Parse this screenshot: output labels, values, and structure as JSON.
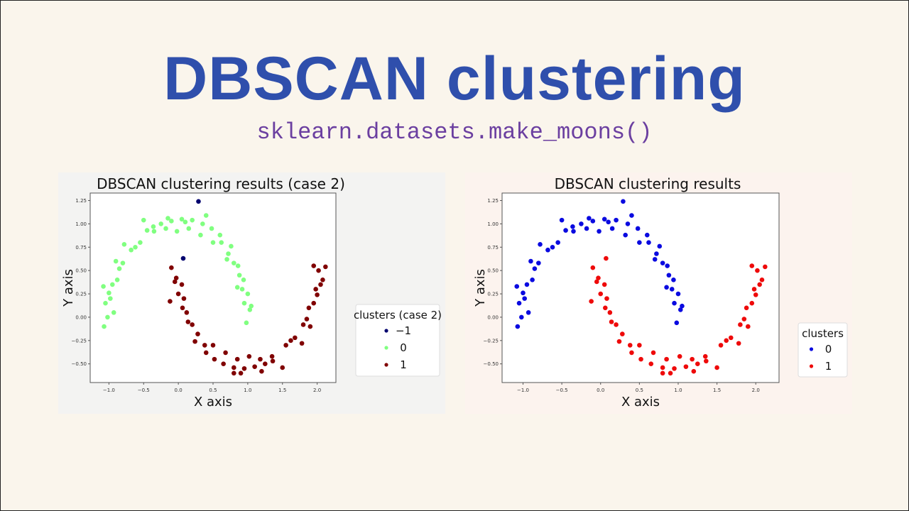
{
  "slide": {
    "title": "DBSCAN clustering",
    "subtitle": "sklearn.datasets.make_moons()"
  },
  "chart_data": [
    {
      "type": "scatter",
      "title": "DBSCAN clustering results (case 2)",
      "xlabel": "X axis",
      "ylabel": "Y axis",
      "xlim": [
        -1.27,
        2.27
      ],
      "ylim": [
        -0.7,
        1.33
      ],
      "xticks": [
        {
          "v": -1.0,
          "label": "−1.0"
        },
        {
          "v": -0.5,
          "label": "−0.5"
        },
        {
          "v": 0.0,
          "label": "0.0"
        },
        {
          "v": 0.5,
          "label": "0.5"
        },
        {
          "v": 1.0,
          "label": "1.0"
        },
        {
          "v": 1.5,
          "label": "1.5"
        },
        {
          "v": 2.0,
          "label": "2.0"
        }
      ],
      "yticks": [
        {
          "v": -0.5,
          "label": "−0.50"
        },
        {
          "v": -0.25,
          "label": "−0.25"
        },
        {
          "v": 0.0,
          "label": "0.00"
        },
        {
          "v": 0.25,
          "label": "0.25"
        },
        {
          "v": 0.5,
          "label": "0.50"
        },
        {
          "v": 0.75,
          "label": "0.75"
        },
        {
          "v": 1.0,
          "label": "1.00"
        },
        {
          "v": 1.25,
          "label": "1.25"
        }
      ],
      "grid": false,
      "legend": {
        "title": "clusters (case 2)",
        "placement": "outside-right"
      },
      "series": [
        {
          "name": "−1",
          "color": "#00006e",
          "points": [
            [
              0.29,
              1.24
            ],
            [
              0.07,
              0.63
            ]
          ]
        },
        {
          "name": "0",
          "color": "#80ff80",
          "points": [
            [
              1.03,
              0.08
            ],
            [
              0.95,
              0.15
            ],
            [
              1.05,
              0.12
            ],
            [
              0.92,
              0.3
            ],
            [
              1.0,
              0.25
            ],
            [
              0.88,
              0.45
            ],
            [
              0.94,
              0.4
            ],
            [
              0.8,
              0.58
            ],
            [
              0.86,
              0.55
            ],
            [
              0.72,
              0.68
            ],
            [
              0.76,
              0.76
            ],
            [
              0.62,
              0.8
            ],
            [
              0.6,
              0.88
            ],
            [
              0.5,
              0.8
            ],
            [
              0.48,
              0.95
            ],
            [
              0.35,
              1.0
            ],
            [
              0.32,
              0.88
            ],
            [
              0.2,
              1.04
            ],
            [
              0.15,
              0.95
            ],
            [
              0.05,
              1.05
            ],
            [
              -0.02,
              0.92
            ],
            [
              -0.1,
              1.03
            ],
            [
              -0.18,
              0.95
            ],
            [
              -0.25,
              1.0
            ],
            [
              -0.35,
              0.92
            ],
            [
              -0.36,
              0.97
            ],
            [
              -0.5,
              1.04
            ],
            [
              -0.55,
              0.8
            ],
            [
              -0.62,
              0.75
            ],
            [
              -0.68,
              0.72
            ],
            [
              -0.78,
              0.78
            ],
            [
              -0.8,
              0.58
            ],
            [
              -0.85,
              0.52
            ],
            [
              -0.9,
              0.6
            ],
            [
              -0.88,
              0.4
            ],
            [
              -0.95,
              0.35
            ],
            [
              -1.0,
              0.26
            ],
            [
              -0.98,
              0.2
            ],
            [
              -1.05,
              0.15
            ],
            [
              -1.02,
              0.0
            ],
            [
              -1.07,
              -0.1
            ],
            [
              -0.93,
              0.05
            ],
            [
              -1.08,
              0.33
            ],
            [
              0.4,
              1.09
            ],
            [
              0.98,
              -0.06
            ],
            [
              -0.15,
              1.06
            ],
            [
              0.1,
              1.02
            ],
            [
              -0.45,
              0.93
            ],
            [
              0.7,
              0.62
            ],
            [
              0.85,
              0.32
            ]
          ]
        },
        {
          "name": "1",
          "color": "#800000",
          "points": [
            [
              -0.03,
              0.42
            ],
            [
              0.05,
              0.35
            ],
            [
              -0.05,
              0.38
            ],
            [
              0.08,
              0.2
            ],
            [
              0.0,
              0.25
            ],
            [
              0.12,
              0.05
            ],
            [
              0.06,
              0.1
            ],
            [
              0.2,
              -0.08
            ],
            [
              0.14,
              -0.05
            ],
            [
              0.28,
              -0.18
            ],
            [
              0.24,
              -0.26
            ],
            [
              0.38,
              -0.3
            ],
            [
              0.4,
              -0.38
            ],
            [
              0.5,
              -0.3
            ],
            [
              0.52,
              -0.45
            ],
            [
              0.65,
              -0.5
            ],
            [
              0.68,
              -0.38
            ],
            [
              0.8,
              -0.54
            ],
            [
              0.85,
              -0.45
            ],
            [
              0.95,
              -0.55
            ],
            [
              1.02,
              -0.42
            ],
            [
              1.1,
              -0.53
            ],
            [
              1.18,
              -0.45
            ],
            [
              1.25,
              -0.5
            ],
            [
              1.35,
              -0.42
            ],
            [
              1.36,
              -0.47
            ],
            [
              1.5,
              -0.54
            ],
            [
              1.55,
              -0.3
            ],
            [
              1.62,
              -0.25
            ],
            [
              1.68,
              -0.22
            ],
            [
              1.78,
              -0.28
            ],
            [
              1.8,
              -0.08
            ],
            [
              1.85,
              -0.02
            ],
            [
              1.9,
              -0.1
            ],
            [
              1.88,
              0.1
            ],
            [
              1.95,
              0.15
            ],
            [
              2.0,
              0.24
            ],
            [
              1.98,
              0.3
            ],
            [
              2.05,
              0.35
            ],
            [
              2.02,
              0.5
            ],
            [
              2.12,
              0.54
            ],
            [
              -0.12,
              0.17
            ],
            [
              1.95,
              0.55
            ],
            [
              0.9,
              -0.6
            ],
            [
              1.2,
              -0.58
            ],
            [
              0.8,
              -0.6
            ],
            [
              2.08,
              0.4
            ],
            [
              -0.1,
              0.53
            ]
          ]
        }
      ]
    },
    {
      "type": "scatter",
      "title": "DBSCAN clustering results",
      "xlabel": "X axis",
      "ylabel": "Y axis",
      "xlim": [
        -1.27,
        2.3
      ],
      "ylim": [
        -0.7,
        1.33
      ],
      "xticks": [
        {
          "v": -1.0,
          "label": "−1.0"
        },
        {
          "v": -0.5,
          "label": "−0.5"
        },
        {
          "v": 0.0,
          "label": "0.0"
        },
        {
          "v": 0.5,
          "label": "0.5"
        },
        {
          "v": 1.0,
          "label": "1.0"
        },
        {
          "v": 1.5,
          "label": "1.5"
        },
        {
          "v": 2.0,
          "label": "2.0"
        }
      ],
      "yticks": [
        {
          "v": -0.5,
          "label": "−0.50"
        },
        {
          "v": -0.25,
          "label": "−0.25"
        },
        {
          "v": 0.0,
          "label": "0.00"
        },
        {
          "v": 0.25,
          "label": "0.25"
        },
        {
          "v": 0.5,
          "label": "0.50"
        },
        {
          "v": 0.75,
          "label": "0.75"
        },
        {
          "v": 1.0,
          "label": "1.00"
        },
        {
          "v": 1.25,
          "label": "1.25"
        }
      ],
      "grid": false,
      "legend": {
        "title": "clusters",
        "placement": "outside-right"
      },
      "series": [
        {
          "name": "0",
          "color": "#0a0ae0",
          "points": [
            [
              0.29,
              1.24
            ],
            [
              1.03,
              0.08
            ],
            [
              0.95,
              0.15
            ],
            [
              1.05,
              0.12
            ],
            [
              0.92,
              0.3
            ],
            [
              1.0,
              0.25
            ],
            [
              0.88,
              0.45
            ],
            [
              0.94,
              0.4
            ],
            [
              0.8,
              0.58
            ],
            [
              0.86,
              0.55
            ],
            [
              0.72,
              0.68
            ],
            [
              0.76,
              0.76
            ],
            [
              0.62,
              0.8
            ],
            [
              0.6,
              0.88
            ],
            [
              0.5,
              0.8
            ],
            [
              0.48,
              0.95
            ],
            [
              0.35,
              1.0
            ],
            [
              0.32,
              0.88
            ],
            [
              0.2,
              1.04
            ],
            [
              0.15,
              0.95
            ],
            [
              0.05,
              1.05
            ],
            [
              -0.02,
              0.92
            ],
            [
              -0.1,
              1.03
            ],
            [
              -0.18,
              0.95
            ],
            [
              -0.25,
              1.0
            ],
            [
              -0.35,
              0.92
            ],
            [
              -0.36,
              0.97
            ],
            [
              -0.5,
              1.04
            ],
            [
              -0.55,
              0.8
            ],
            [
              -0.62,
              0.75
            ],
            [
              -0.68,
              0.72
            ],
            [
              -0.78,
              0.78
            ],
            [
              -0.8,
              0.58
            ],
            [
              -0.85,
              0.52
            ],
            [
              -0.9,
              0.6
            ],
            [
              -0.88,
              0.4
            ],
            [
              -0.95,
              0.35
            ],
            [
              -1.0,
              0.26
            ],
            [
              -0.98,
              0.2
            ],
            [
              -1.05,
              0.15
            ],
            [
              -1.02,
              0.0
            ],
            [
              -1.07,
              -0.1
            ],
            [
              -0.93,
              0.05
            ],
            [
              -1.08,
              0.33
            ],
            [
              0.4,
              1.09
            ],
            [
              0.98,
              -0.06
            ],
            [
              -0.15,
              1.06
            ],
            [
              0.1,
              1.02
            ],
            [
              -0.45,
              0.93
            ],
            [
              0.7,
              0.62
            ],
            [
              0.85,
              0.32
            ]
          ]
        },
        {
          "name": "1",
          "color": "#ee0a0a",
          "points": [
            [
              0.07,
              0.63
            ],
            [
              -0.03,
              0.42
            ],
            [
              0.05,
              0.35
            ],
            [
              -0.05,
              0.38
            ],
            [
              0.08,
              0.2
            ],
            [
              0.0,
              0.25
            ],
            [
              0.12,
              0.05
            ],
            [
              0.06,
              0.1
            ],
            [
              0.2,
              -0.08
            ],
            [
              0.14,
              -0.05
            ],
            [
              0.28,
              -0.18
            ],
            [
              0.24,
              -0.26
            ],
            [
              0.38,
              -0.3
            ],
            [
              0.4,
              -0.38
            ],
            [
              0.5,
              -0.3
            ],
            [
              0.52,
              -0.45
            ],
            [
              0.65,
              -0.5
            ],
            [
              0.68,
              -0.38
            ],
            [
              0.8,
              -0.54
            ],
            [
              0.85,
              -0.45
            ],
            [
              0.95,
              -0.55
            ],
            [
              1.02,
              -0.42
            ],
            [
              1.1,
              -0.53
            ],
            [
              1.18,
              -0.45
            ],
            [
              1.25,
              -0.5
            ],
            [
              1.35,
              -0.42
            ],
            [
              1.36,
              -0.47
            ],
            [
              1.5,
              -0.54
            ],
            [
              1.55,
              -0.3
            ],
            [
              1.62,
              -0.25
            ],
            [
              1.68,
              -0.22
            ],
            [
              1.78,
              -0.28
            ],
            [
              1.8,
              -0.08
            ],
            [
              1.85,
              -0.02
            ],
            [
              1.9,
              -0.1
            ],
            [
              1.88,
              0.1
            ],
            [
              1.95,
              0.15
            ],
            [
              2.0,
              0.24
            ],
            [
              1.98,
              0.3
            ],
            [
              2.05,
              0.35
            ],
            [
              2.02,
              0.5
            ],
            [
              2.12,
              0.54
            ],
            [
              -0.12,
              0.17
            ],
            [
              1.95,
              0.55
            ],
            [
              0.9,
              -0.6
            ],
            [
              1.2,
              -0.58
            ],
            [
              0.8,
              -0.6
            ],
            [
              2.08,
              0.4
            ],
            [
              -0.1,
              0.53
            ]
          ]
        }
      ]
    }
  ]
}
